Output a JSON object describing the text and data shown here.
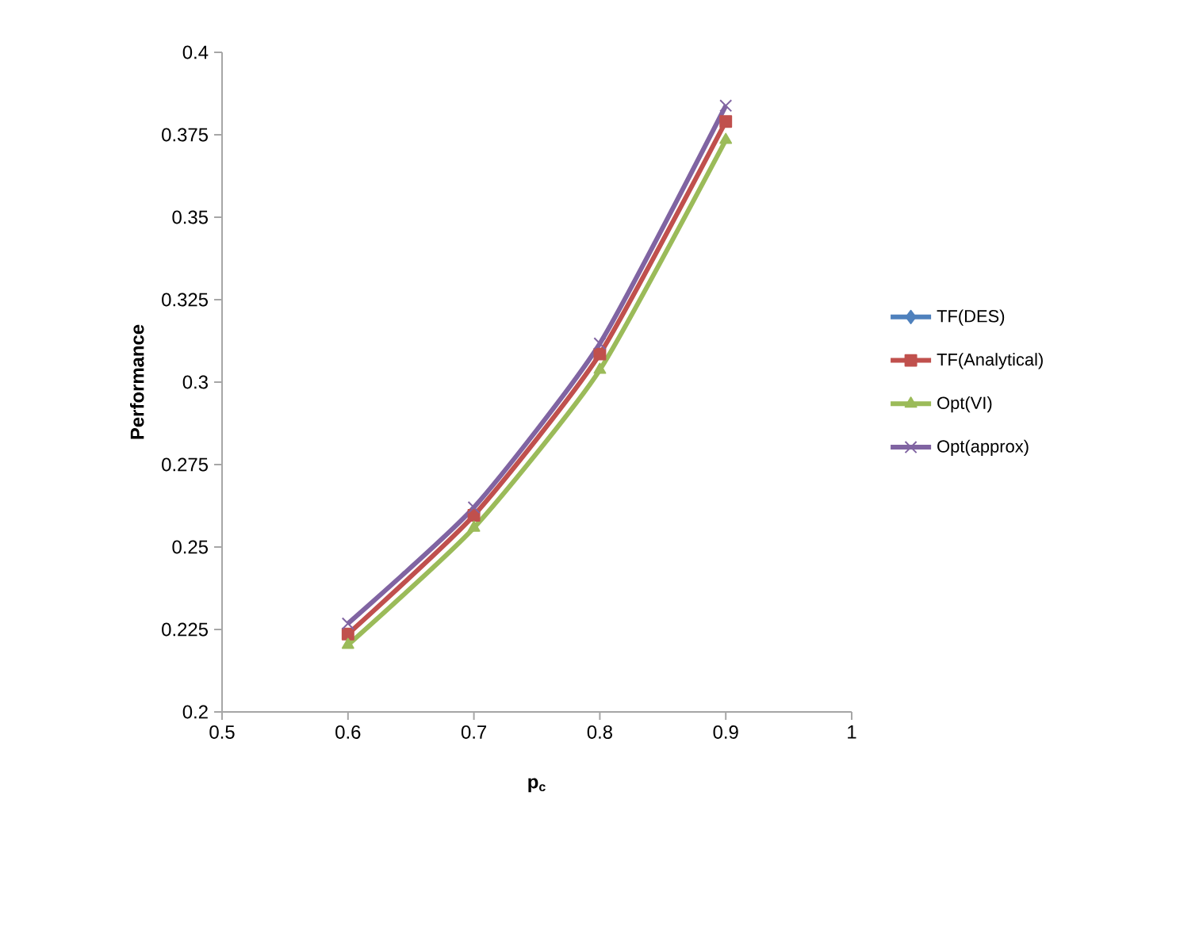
{
  "chart_data": {
    "type": "line",
    "xlabel": "p$_{c}$",
    "ylabel": "Performance",
    "x": [
      0.6,
      0.7,
      0.8,
      0.9
    ],
    "series": [
      {
        "name": "TF(DES)",
        "color": "#4f81bd",
        "marker": "diamond",
        "values": [
          null,
          null,
          null,
          null
        ]
      },
      {
        "name": "TF(Analytical)",
        "color": "#c0504d",
        "marker": "square",
        "values": [
          0.2236,
          0.2596,
          0.3085,
          0.379
        ]
      },
      {
        "name": "Opt(VI)",
        "color": "#9bbb59",
        "marker": "triangle",
        "values": [
          0.2203,
          0.2558,
          0.3037,
          0.3734
        ]
      },
      {
        "name": "Opt(approx)",
        "color": "#8064a2",
        "marker": "cross",
        "values": [
          0.2268,
          0.262,
          0.3117,
          0.3838
        ]
      }
    ],
    "xlim": [
      0.5,
      1
    ],
    "xticks": [
      0.5,
      0.6,
      0.7,
      0.8,
      0.9,
      1
    ],
    "ylim": [
      0.2,
      0.4
    ],
    "yticks": [
      0.2,
      0.225,
      0.25,
      0.275,
      0.3,
      0.325,
      0.35,
      0.375,
      0.4
    ],
    "grid": false,
    "legend": "right"
  }
}
